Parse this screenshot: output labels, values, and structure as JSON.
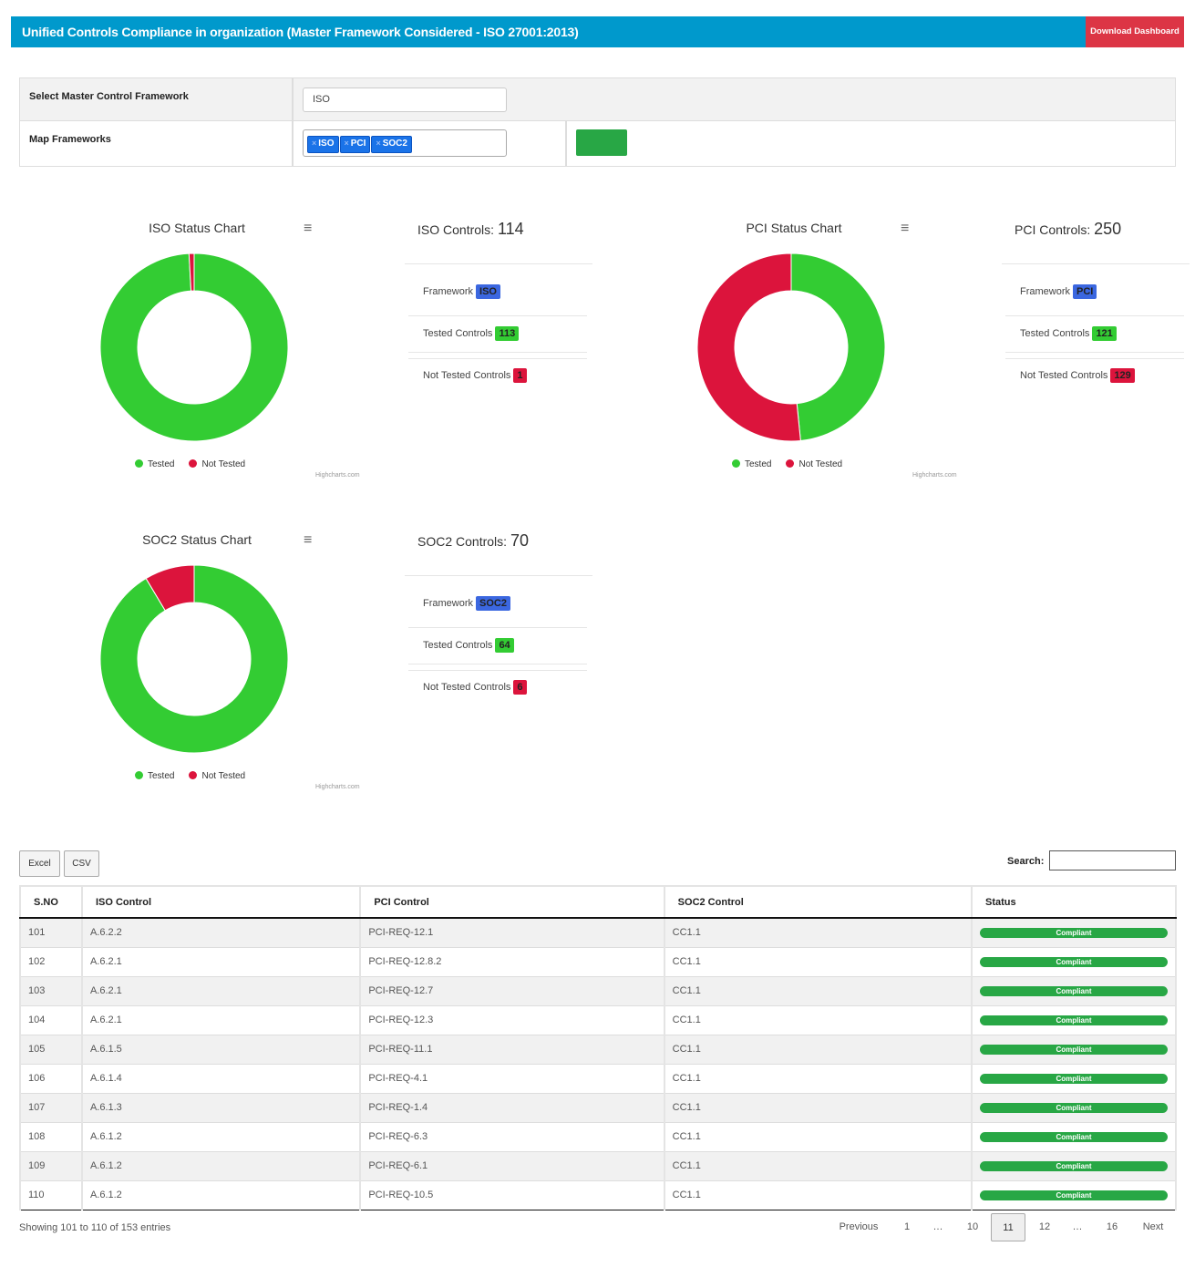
{
  "header": {
    "title": "Unified Controls Compliance in organization (Master Framework Considered - ISO 27001:2013)",
    "download_label": "Download Dashboard"
  },
  "filters": {
    "master_label": "Select Master Control Framework",
    "master_value": "ISO",
    "map_label": "Map Frameworks",
    "map_tags": [
      "ISO",
      "PCI",
      "SOC2"
    ],
    "tag_remove_glyph": "×"
  },
  "colors": {
    "tested": "#33cc33",
    "not_tested": "#dc143c",
    "accent": "#0099cc",
    "danger": "#dc3545",
    "success": "#28a745",
    "framework_badge": "#3b67e0"
  },
  "menu_icon_glyph": "≡",
  "legend": {
    "tested": "Tested",
    "not_tested": "Not Tested"
  },
  "credits": "Highcharts.com",
  "info_labels": {
    "framework": "Framework",
    "tested": "Tested Controls",
    "not_tested": "Not Tested Controls",
    "controls_suffix": " Controls",
    "colon": ": "
  },
  "chart_data": [
    {
      "type": "pie",
      "title": "ISO Status Chart",
      "categories": [
        "Tested",
        "Not Tested"
      ],
      "values": [
        113,
        1
      ],
      "colors": [
        "#33cc33",
        "#dc143c"
      ]
    },
    {
      "type": "pie",
      "title": "PCI Status Chart",
      "categories": [
        "Tested",
        "Not Tested"
      ],
      "values": [
        121,
        129
      ],
      "colors": [
        "#33cc33",
        "#dc143c"
      ]
    },
    {
      "type": "pie",
      "title": "SOC2 Status Chart",
      "categories": [
        "Tested",
        "Not Tested"
      ],
      "values": [
        64,
        6
      ],
      "colors": [
        "#33cc33",
        "#dc143c"
      ]
    }
  ],
  "frameworks": [
    {
      "name": "ISO",
      "total": "114",
      "tested": "113",
      "not_tested": "1"
    },
    {
      "name": "PCI",
      "total": "250",
      "tested": "121",
      "not_tested": "129"
    },
    {
      "name": "SOC2",
      "total": "70",
      "tested": "64",
      "not_tested": "6"
    }
  ],
  "table": {
    "buttons": {
      "excel": "Excel",
      "csv": "CSV"
    },
    "search_label": "Search:",
    "search_value": "",
    "columns": [
      "S.NO",
      "ISO Control",
      "PCI Control",
      "SOC2 Control",
      "Status"
    ],
    "rows": [
      [
        "101",
        "A.6.2.2",
        "PCI-REQ-12.1",
        "CC1.1",
        "Compliant"
      ],
      [
        "102",
        "A.6.2.1",
        "PCI-REQ-12.8.2",
        "CC1.1",
        "Compliant"
      ],
      [
        "103",
        "A.6.2.1",
        "PCI-REQ-12.7",
        "CC1.1",
        "Compliant"
      ],
      [
        "104",
        "A.6.2.1",
        "PCI-REQ-12.3",
        "CC1.1",
        "Compliant"
      ],
      [
        "105",
        "A.6.1.5",
        "PCI-REQ-11.1",
        "CC1.1",
        "Compliant"
      ],
      [
        "106",
        "A.6.1.4",
        "PCI-REQ-4.1",
        "CC1.1",
        "Compliant"
      ],
      [
        "107",
        "A.6.1.3",
        "PCI-REQ-1.4",
        "CC1.1",
        "Compliant"
      ],
      [
        "108",
        "A.6.1.2",
        "PCI-REQ-6.3",
        "CC1.1",
        "Compliant"
      ],
      [
        "109",
        "A.6.1.2",
        "PCI-REQ-6.1",
        "CC1.1",
        "Compliant"
      ],
      [
        "110",
        "A.6.1.2",
        "PCI-REQ-10.5",
        "CC1.1",
        "Compliant"
      ]
    ],
    "info_text": "Showing 101 to 110 of 153 entries",
    "pagination": {
      "previous": "Previous",
      "pages": [
        "1",
        "…",
        "10",
        "11",
        "12",
        "…",
        "16"
      ],
      "current": "11",
      "next": "Next"
    }
  }
}
